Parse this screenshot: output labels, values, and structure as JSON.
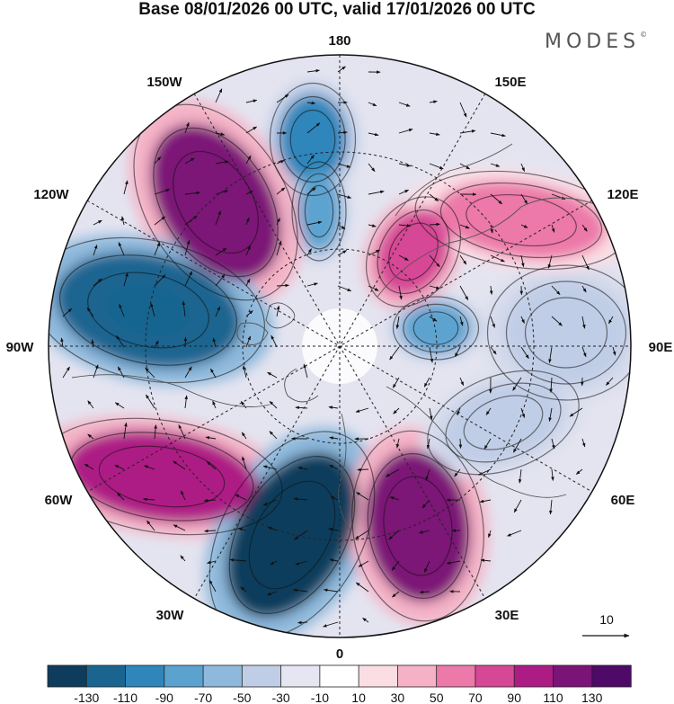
{
  "title": "Base 08/01/2026 00 UTC, valid 17/01/2026 00 UTC",
  "brand": "MODES",
  "brand_mark": "©",
  "longitude_labels": {
    "lon_180": "180",
    "lon_150E": "150E",
    "lon_120E": "120E",
    "lon_90E": "90E",
    "lon_60E": "60E",
    "lon_30E": "30E",
    "lon_0": "0",
    "lon_30W": "30W",
    "lon_60W": "60W",
    "lon_90W": "90W",
    "lon_120W": "120W",
    "lon_150W": "150W"
  },
  "vector_reference": {
    "label": "10",
    "value": 10
  },
  "colorbar": {
    "ticks": [
      "-130",
      "-110",
      "-90",
      "-70",
      "-50",
      "-30",
      "-10",
      "10",
      "30",
      "50",
      "70",
      "90",
      "110",
      "130"
    ],
    "colors": [
      "#0e3c5c",
      "#1a6590",
      "#2f86bb",
      "#5ba3cf",
      "#8fb9dc",
      "#c0cde6",
      "#e6e6f2",
      "#ffffff",
      "#fbdde4",
      "#f5b2c6",
      "#ec79a9",
      "#d64795",
      "#ad1c85",
      "#7b1477",
      "#4e0a66"
    ]
  },
  "anomaly_centers": [
    {
      "name": "negative-anomaly-dateline-north",
      "value": -70,
      "color": "#2f86bb"
    },
    {
      "name": "negative-anomaly-dateline-south",
      "value": -50,
      "color": "#5ba3cf"
    },
    {
      "name": "positive-anomaly-140w",
      "value": 110,
      "color": "#7b1477"
    },
    {
      "name": "negative-anomaly-100w",
      "value": -90,
      "color": "#1a6590"
    },
    {
      "name": "positive-anomaly-65w",
      "value": 90,
      "color": "#ad1c85"
    },
    {
      "name": "negative-anomaly-15w",
      "value": -130,
      "color": "#0e3c5c"
    },
    {
      "name": "positive-anomaly-25e",
      "value": 110,
      "color": "#7b1477"
    },
    {
      "name": "negative-anomaly-60e",
      "value": -30,
      "color": "#c0cde6"
    },
    {
      "name": "negative-anomaly-90e",
      "value": -30,
      "color": "#c0cde6"
    },
    {
      "name": "negative-anomaly-pole",
      "value": -50,
      "color": "#5ba3cf"
    },
    {
      "name": "positive-anomaly-150e",
      "value": 70,
      "color": "#d64795"
    },
    {
      "name": "positive-anomaly-130e",
      "value": 50,
      "color": "#ec79a9"
    }
  ]
}
